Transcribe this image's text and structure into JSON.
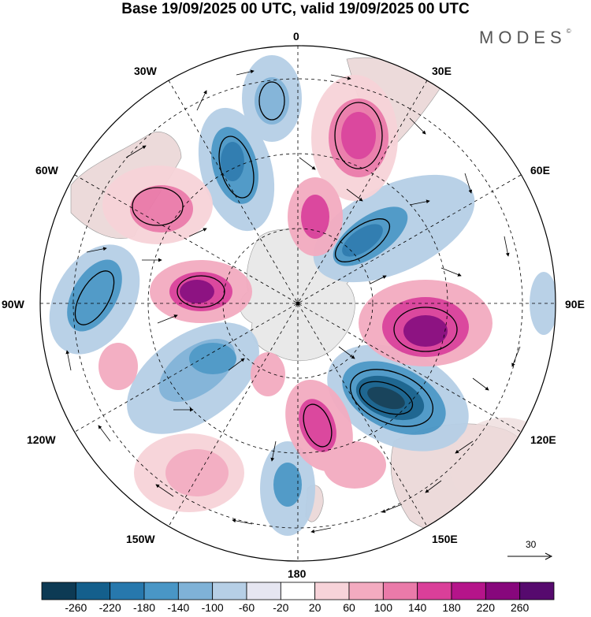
{
  "title": "Base 19/09/2025 00 UTC, valid 19/09/2025 00 UTC",
  "brand": {
    "name": "MODES",
    "mark": "©"
  },
  "map": {
    "projection": "south polar stereographic",
    "longitude_labels": {
      "top": "0",
      "top_left": "30W",
      "top_right": "30E",
      "upper_left": "60W",
      "upper_right": "60E",
      "left": "90W",
      "right": "90E",
      "lower_left": "120W",
      "lower_right": "120E",
      "bottom_left": "150W",
      "bottom_right": "150E",
      "bottom": "180"
    },
    "colors": {
      "land": "#e4e4e4",
      "ocean": "#ffffff",
      "grid": "#000000",
      "vectors": "#000000"
    }
  },
  "colorbar": {
    "labels": [
      "-260",
      "-220",
      "-180",
      "-140",
      "-100",
      "-60",
      "-20",
      "20",
      "60",
      "100",
      "140",
      "180",
      "220",
      "260"
    ],
    "colors": [
      "#0d3a54",
      "#145f8c",
      "#2778ad",
      "#4996c6",
      "#7fb2d7",
      "#b6cfe6",
      "#e6e6f1",
      "#ffffff",
      "#f7d3d9",
      "#f3abc0",
      "#ea7aa9",
      "#da3f99",
      "#b5148a",
      "#87077c",
      "#560a6e"
    ]
  },
  "vector_legend": {
    "value": "30"
  }
}
